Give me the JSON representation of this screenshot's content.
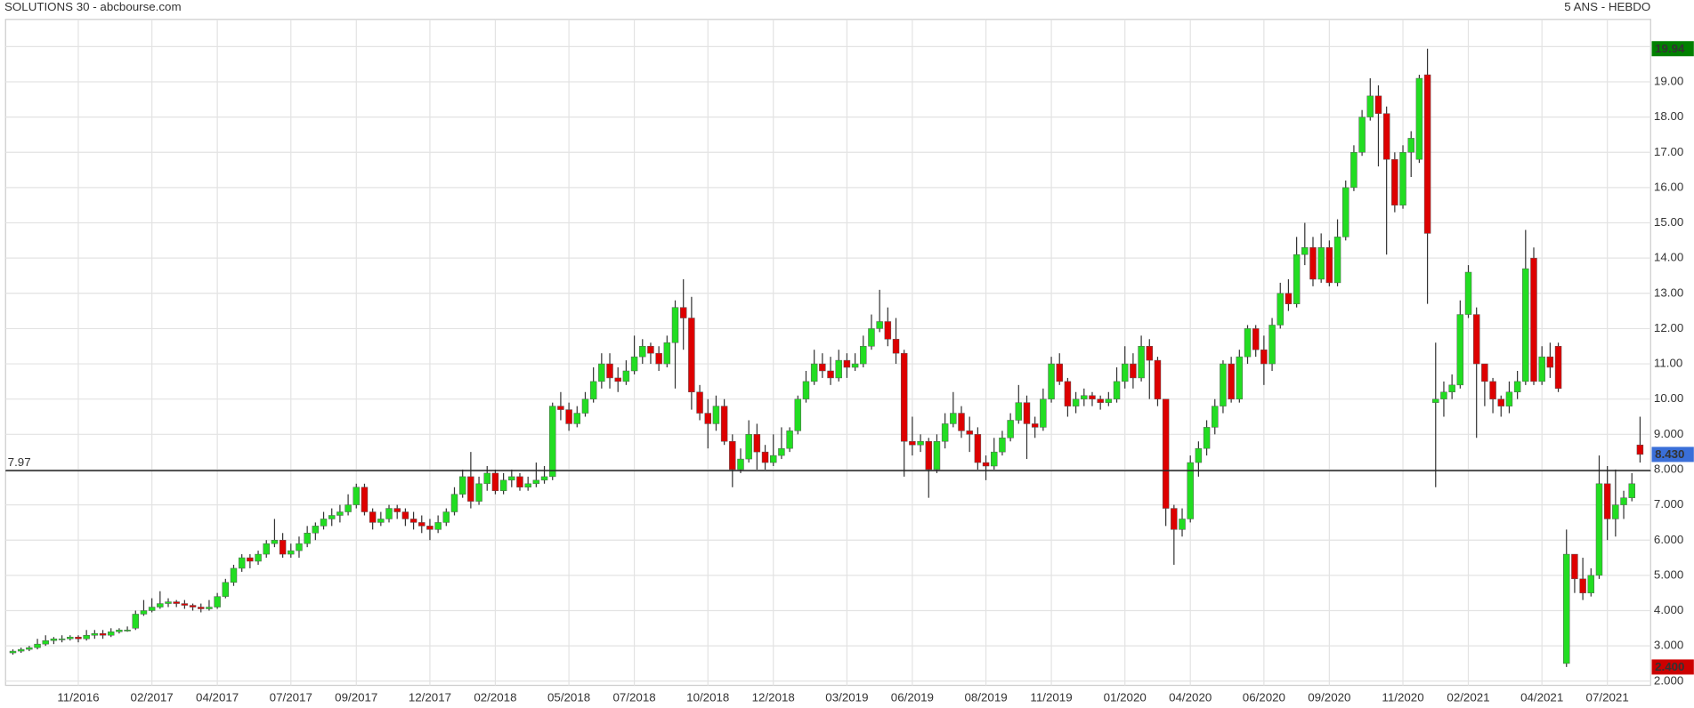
{
  "chart_data": {
    "type": "candlestick",
    "title": "SOLUTIONS 30 - abcbourse.com",
    "subtitle": "5 ANS - HEBDO",
    "up_color": "#22dd22",
    "down_color": "#dd0000",
    "grid": true,
    "ylim": [
      1.88,
      20.77
    ],
    "yticks": [
      {
        "value": 2,
        "label": "2.000"
      },
      {
        "value": 3,
        "label": "3.000"
      },
      {
        "value": 4,
        "label": "4.000"
      },
      {
        "value": 5,
        "label": "5.000"
      },
      {
        "value": 6,
        "label": "6.000"
      },
      {
        "value": 7,
        "label": "7.000"
      },
      {
        "value": 8,
        "label": "8.000"
      },
      {
        "value": 9,
        "label": "9.000"
      },
      {
        "value": 10,
        "label": "10.00"
      },
      {
        "value": 11,
        "label": "11.00"
      },
      {
        "value": 12,
        "label": "12.00"
      },
      {
        "value": 13,
        "label": "13.00"
      },
      {
        "value": 14,
        "label": "14.00"
      },
      {
        "value": 15,
        "label": "15.00"
      },
      {
        "value": 16,
        "label": "16.00"
      },
      {
        "value": 17,
        "label": "17.00"
      },
      {
        "value": 18,
        "label": "18.00"
      },
      {
        "value": 19,
        "label": "19.00"
      },
      {
        "value": 20,
        "label": "20.00"
      }
    ],
    "hline": 7.97,
    "price_labels": [
      {
        "value": 19.94,
        "color": "#008000"
      },
      {
        "value": 8.43,
        "label": "8.430",
        "color": "#3a6fd8"
      },
      {
        "value": 2.4,
        "label": "2.400",
        "color": "#cc0000"
      }
    ],
    "categories": [
      null,
      null,
      null,
      null,
      null,
      null,
      null,
      null,
      "11/2016",
      null,
      null,
      null,
      null,
      null,
      null,
      null,
      null,
      "02/2017",
      null,
      null,
      null,
      null,
      null,
      null,
      null,
      "04/2017",
      null,
      null,
      null,
      null,
      null,
      null,
      null,
      null,
      "07/2017",
      null,
      null,
      null,
      null,
      null,
      null,
      null,
      "09/2017",
      null,
      null,
      null,
      null,
      null,
      null,
      null,
      null,
      "12/2017",
      null,
      null,
      null,
      null,
      null,
      null,
      null,
      "02/2018",
      null,
      null,
      null,
      null,
      null,
      null,
      null,
      null,
      "05/2018",
      null,
      null,
      null,
      null,
      null,
      null,
      null,
      "07/2018",
      null,
      null,
      null,
      null,
      null,
      null,
      null,
      null,
      "10/2018",
      null,
      null,
      null,
      null,
      null,
      null,
      null,
      "12/2018",
      null,
      null,
      null,
      null,
      null,
      null,
      null,
      null,
      "03/2019",
      null,
      null,
      null,
      null,
      null,
      null,
      null,
      "06/2019",
      null,
      null,
      null,
      null,
      null,
      null,
      null,
      null,
      "08/2019",
      null,
      null,
      null,
      null,
      null,
      null,
      null,
      "11/2019",
      null,
      null,
      null,
      null,
      null,
      null,
      null,
      null,
      "01/2020",
      null,
      null,
      null,
      null,
      null,
      null,
      null,
      "04/2020",
      null,
      null,
      null,
      null,
      null,
      null,
      null,
      null,
      "06/2020",
      null,
      null,
      null,
      null,
      null,
      null,
      null,
      "09/2020",
      null,
      null,
      null,
      null,
      null,
      null,
      null,
      null,
      "11/2020",
      null,
      null,
      null,
      null,
      null,
      null,
      null,
      "02/2021",
      null,
      null,
      null,
      null,
      null,
      null,
      null,
      null,
      "04/2021",
      null,
      null,
      null,
      null,
      null,
      null,
      null,
      "07/2021",
      null,
      null,
      null,
      null
    ],
    "ohlc": [
      [
        2.8,
        2.9,
        2.75,
        2.85
      ],
      [
        2.85,
        2.95,
        2.8,
        2.9
      ],
      [
        2.9,
        3.0,
        2.85,
        2.95
      ],
      [
        2.95,
        3.2,
        2.9,
        3.05
      ],
      [
        3.05,
        3.3,
        3.0,
        3.15
      ],
      [
        3.15,
        3.25,
        3.05,
        3.2
      ],
      [
        3.2,
        3.3,
        3.1,
        3.2
      ],
      [
        3.2,
        3.3,
        3.15,
        3.25
      ],
      [
        3.25,
        3.3,
        3.1,
        3.2
      ],
      [
        3.2,
        3.45,
        3.15,
        3.3
      ],
      [
        3.3,
        3.45,
        3.2,
        3.35
      ],
      [
        3.35,
        3.45,
        3.2,
        3.3
      ],
      [
        3.3,
        3.5,
        3.25,
        3.4
      ],
      [
        3.4,
        3.5,
        3.35,
        3.45
      ],
      [
        3.45,
        3.55,
        3.4,
        3.45
      ],
      [
        3.5,
        4.0,
        3.45,
        3.9
      ],
      [
        3.9,
        4.3,
        3.85,
        4.0
      ],
      [
        4.0,
        4.35,
        3.95,
        4.1
      ],
      [
        4.1,
        4.55,
        4.05,
        4.2
      ],
      [
        4.2,
        4.35,
        4.1,
        4.25
      ],
      [
        4.25,
        4.3,
        4.1,
        4.2
      ],
      [
        4.2,
        4.3,
        4.05,
        4.15
      ],
      [
        4.15,
        4.2,
        4.0,
        4.1
      ],
      [
        4.1,
        4.2,
        3.95,
        4.05
      ],
      [
        4.05,
        4.3,
        4.0,
        4.1
      ],
      [
        4.1,
        4.5,
        4.05,
        4.4
      ],
      [
        4.4,
        4.9,
        4.35,
        4.8
      ],
      [
        4.8,
        5.3,
        4.7,
        5.2
      ],
      [
        5.2,
        5.6,
        5.1,
        5.5
      ],
      [
        5.5,
        5.6,
        5.2,
        5.4
      ],
      [
        5.4,
        5.7,
        5.3,
        5.6
      ],
      [
        5.6,
        6.0,
        5.5,
        5.9
      ],
      [
        5.9,
        6.6,
        5.8,
        6.0
      ],
      [
        6.0,
        6.2,
        5.5,
        5.6
      ],
      [
        5.6,
        5.9,
        5.5,
        5.7
      ],
      [
        5.7,
        6.1,
        5.5,
        5.9
      ],
      [
        5.9,
        6.4,
        5.8,
        6.2
      ],
      [
        6.2,
        6.5,
        6.0,
        6.4
      ],
      [
        6.4,
        6.8,
        6.3,
        6.6
      ],
      [
        6.6,
        6.9,
        6.4,
        6.7
      ],
      [
        6.7,
        7.0,
        6.5,
        6.8
      ],
      [
        6.8,
        7.3,
        6.7,
        7.0
      ],
      [
        7.0,
        7.6,
        6.9,
        7.5
      ],
      [
        7.5,
        7.6,
        6.7,
        6.8
      ],
      [
        6.8,
        6.9,
        6.3,
        6.5
      ],
      [
        6.5,
        6.8,
        6.4,
        6.6
      ],
      [
        6.6,
        7.0,
        6.5,
        6.9
      ],
      [
        6.9,
        7.0,
        6.6,
        6.8
      ],
      [
        6.8,
        6.9,
        6.4,
        6.6
      ],
      [
        6.6,
        6.8,
        6.3,
        6.5
      ],
      [
        6.5,
        6.7,
        6.2,
        6.4
      ],
      [
        6.4,
        6.6,
        6.0,
        6.3
      ],
      [
        6.3,
        6.7,
        6.2,
        6.5
      ],
      [
        6.5,
        6.9,
        6.4,
        6.8
      ],
      [
        6.8,
        7.5,
        6.7,
        7.3
      ],
      [
        7.3,
        8.0,
        7.2,
        7.8
      ],
      [
        7.8,
        8.5,
        6.9,
        7.1
      ],
      [
        7.1,
        7.8,
        7.0,
        7.6
      ],
      [
        7.6,
        8.1,
        7.4,
        7.9
      ],
      [
        7.9,
        8.0,
        7.3,
        7.4
      ],
      [
        7.4,
        7.9,
        7.3,
        7.7
      ],
      [
        7.7,
        8.0,
        7.5,
        7.8
      ],
      [
        7.8,
        7.9,
        7.4,
        7.5
      ],
      [
        7.5,
        7.8,
        7.4,
        7.6
      ],
      [
        7.6,
        8.2,
        7.5,
        7.7
      ],
      [
        7.7,
        8.1,
        7.6,
        7.8
      ],
      [
        7.8,
        9.9,
        7.7,
        9.8
      ],
      [
        9.8,
        10.2,
        9.4,
        9.7
      ],
      [
        9.7,
        9.9,
        9.1,
        9.3
      ],
      [
        9.3,
        9.8,
        9.2,
        9.6
      ],
      [
        9.6,
        10.2,
        9.5,
        10.0
      ],
      [
        10.0,
        10.9,
        9.9,
        10.5
      ],
      [
        10.5,
        11.3,
        10.3,
        11.0
      ],
      [
        11.0,
        11.3,
        10.3,
        10.6
      ],
      [
        10.6,
        10.9,
        10.2,
        10.5
      ],
      [
        10.5,
        11.1,
        10.4,
        10.8
      ],
      [
        10.8,
        11.8,
        10.7,
        11.2
      ],
      [
        11.2,
        11.7,
        11.0,
        11.5
      ],
      [
        11.5,
        11.6,
        11.0,
        11.3
      ],
      [
        11.3,
        11.5,
        10.8,
        11.0
      ],
      [
        11.0,
        11.8,
        10.9,
        11.6
      ],
      [
        11.6,
        12.8,
        10.3,
        12.6
      ],
      [
        12.6,
        13.4,
        11.4,
        12.3
      ],
      [
        12.3,
        12.9,
        9.7,
        10.2
      ],
      [
        10.2,
        10.4,
        9.4,
        9.6
      ],
      [
        9.6,
        10.0,
        8.6,
        9.3
      ],
      [
        9.3,
        10.1,
        9.1,
        9.8
      ],
      [
        9.8,
        10.0,
        8.7,
        8.8
      ],
      [
        8.8,
        9.0,
        7.5,
        8.0
      ],
      [
        8.0,
        8.6,
        7.9,
        8.3
      ],
      [
        8.3,
        9.4,
        8.2,
        9.0
      ],
      [
        9.0,
        9.3,
        8.0,
        8.5
      ],
      [
        8.5,
        8.7,
        8.0,
        8.2
      ],
      [
        8.2,
        9.0,
        8.1,
        8.4
      ],
      [
        8.4,
        9.2,
        8.3,
        8.6
      ],
      [
        8.6,
        9.2,
        8.5,
        9.1
      ],
      [
        9.1,
        10.1,
        9.0,
        10.0
      ],
      [
        10.0,
        10.8,
        9.9,
        10.5
      ],
      [
        10.5,
        11.4,
        10.4,
        11.0
      ],
      [
        11.0,
        11.3,
        10.6,
        10.8
      ],
      [
        10.8,
        11.2,
        10.4,
        10.6
      ],
      [
        10.6,
        11.4,
        10.5,
        11.1
      ],
      [
        11.1,
        11.3,
        10.6,
        10.9
      ],
      [
        10.9,
        11.3,
        10.8,
        11.0
      ],
      [
        11.0,
        11.8,
        10.9,
        11.5
      ],
      [
        11.5,
        12.4,
        11.4,
        12.0
      ],
      [
        12.0,
        13.1,
        11.9,
        12.2
      ],
      [
        12.2,
        12.6,
        11.5,
        11.7
      ],
      [
        11.7,
        12.3,
        11.0,
        11.3
      ],
      [
        11.3,
        11.4,
        7.8,
        8.8
      ],
      [
        8.8,
        9.5,
        8.4,
        8.7
      ],
      [
        8.7,
        9.0,
        8.5,
        8.8
      ],
      [
        8.8,
        8.9,
        7.2,
        8.0
      ],
      [
        8.0,
        9.0,
        7.9,
        8.8
      ],
      [
        8.8,
        9.6,
        8.6,
        9.3
      ],
      [
        9.3,
        10.2,
        9.2,
        9.6
      ],
      [
        9.6,
        9.8,
        8.9,
        9.1
      ],
      [
        9.1,
        9.5,
        8.5,
        9.0
      ],
      [
        9.0,
        9.2,
        8.0,
        8.2
      ],
      [
        8.2,
        8.4,
        7.7,
        8.1
      ],
      [
        8.1,
        8.9,
        8.0,
        8.5
      ],
      [
        8.5,
        9.1,
        8.4,
        8.9
      ],
      [
        8.9,
        9.6,
        8.8,
        9.4
      ],
      [
        9.4,
        10.4,
        9.3,
        9.9
      ],
      [
        9.9,
        10.1,
        8.3,
        9.3
      ],
      [
        9.3,
        9.5,
        8.9,
        9.2
      ],
      [
        9.2,
        10.3,
        9.1,
        10.0
      ],
      [
        10.0,
        11.2,
        9.9,
        11.0
      ],
      [
        11.0,
        11.3,
        10.4,
        10.5
      ],
      [
        10.5,
        10.6,
        9.5,
        9.8
      ],
      [
        9.8,
        10.2,
        9.6,
        10.0
      ],
      [
        10.0,
        10.3,
        9.8,
        10.1
      ],
      [
        10.1,
        10.2,
        9.8,
        10.0
      ],
      [
        10.0,
        10.1,
        9.7,
        9.9
      ],
      [
        9.9,
        10.2,
        9.8,
        10.0
      ],
      [
        10.0,
        10.9,
        9.9,
        10.5
      ],
      [
        10.5,
        11.5,
        10.3,
        11.0
      ],
      [
        11.0,
        11.3,
        10.3,
        10.6
      ],
      [
        10.6,
        11.8,
        10.5,
        11.5
      ],
      [
        11.5,
        11.7,
        10.0,
        11.1
      ],
      [
        11.1,
        11.2,
        9.8,
        10.0
      ],
      [
        10.0,
        10.0,
        6.4,
        6.9
      ],
      [
        6.9,
        7.0,
        5.3,
        6.3
      ],
      [
        6.3,
        6.9,
        6.1,
        6.6
      ],
      [
        6.6,
        8.4,
        6.5,
        8.2
      ],
      [
        8.2,
        8.8,
        7.8,
        8.6
      ],
      [
        8.6,
        9.4,
        8.4,
        9.2
      ],
      [
        9.2,
        10.0,
        9.0,
        9.8
      ],
      [
        9.8,
        11.1,
        9.6,
        11.0
      ],
      [
        11.0,
        11.2,
        9.9,
        10.0
      ],
      [
        10.0,
        11.4,
        9.9,
        11.2
      ],
      [
        11.2,
        12.1,
        11.0,
        12.0
      ],
      [
        12.0,
        12.1,
        11.2,
        11.4
      ],
      [
        11.4,
        11.8,
        10.4,
        11.0
      ],
      [
        11.0,
        12.3,
        10.8,
        12.1
      ],
      [
        12.1,
        13.3,
        12.0,
        13.0
      ],
      [
        13.0,
        13.4,
        12.5,
        12.7
      ],
      [
        12.7,
        14.6,
        12.6,
        14.1
      ],
      [
        14.1,
        15.0,
        13.8,
        14.3
      ],
      [
        14.3,
        14.6,
        13.2,
        13.4
      ],
      [
        13.4,
        14.7,
        13.3,
        14.3
      ],
      [
        14.3,
        14.5,
        13.2,
        13.3
      ],
      [
        13.3,
        15.1,
        13.2,
        14.6
      ],
      [
        14.6,
        16.2,
        14.5,
        16.0
      ],
      [
        16.0,
        17.2,
        15.9,
        17.0
      ],
      [
        17.0,
        18.2,
        16.9,
        18.0
      ],
      [
        18.0,
        19.1,
        17.9,
        18.6
      ],
      [
        18.6,
        18.9,
        16.6,
        18.1
      ],
      [
        18.1,
        18.3,
        14.1,
        16.8
      ],
      [
        16.8,
        17.0,
        15.3,
        15.5
      ],
      [
        15.5,
        17.2,
        15.4,
        17.0
      ],
      [
        17.0,
        17.6,
        16.3,
        17.4
      ],
      [
        16.8,
        19.2,
        16.7,
        19.1
      ],
      [
        19.2,
        19.94,
        12.7,
        14.7
      ],
      [
        9.9,
        11.6,
        7.5,
        10.0
      ],
      [
        10.0,
        10.5,
        9.5,
        10.2
      ],
      [
        10.2,
        10.7,
        10.0,
        10.4
      ],
      [
        10.4,
        12.8,
        10.3,
        12.4
      ],
      [
        12.4,
        13.8,
        12.3,
        13.6
      ],
      [
        12.4,
        12.6,
        8.9,
        11.0
      ],
      [
        11.0,
        11.0,
        9.8,
        10.5
      ],
      [
        10.5,
        10.6,
        9.6,
        10.0
      ],
      [
        10.0,
        10.1,
        9.5,
        9.8
      ],
      [
        9.8,
        10.5,
        9.6,
        10.2
      ],
      [
        10.2,
        10.8,
        10.0,
        10.5
      ],
      [
        10.5,
        14.8,
        10.4,
        13.7
      ],
      [
        14.0,
        14.3,
        10.4,
        10.5
      ],
      [
        10.5,
        11.5,
        10.4,
        11.2
      ],
      [
        11.2,
        11.6,
        10.6,
        10.9
      ],
      [
        11.5,
        11.6,
        10.2,
        10.3
      ],
      [
        2.5,
        6.3,
        2.4,
        5.6
      ],
      [
        5.6,
        5.6,
        4.5,
        4.9
      ],
      [
        4.9,
        5.5,
        4.3,
        4.5
      ],
      [
        4.5,
        5.2,
        4.4,
        5.0
      ],
      [
        5.0,
        8.4,
        4.9,
        7.6
      ],
      [
        7.6,
        8.1,
        6.0,
        6.6
      ],
      [
        6.6,
        8.0,
        6.1,
        7.0
      ],
      [
        7.0,
        7.4,
        6.6,
        7.2
      ],
      [
        7.2,
        7.9,
        7.1,
        7.6
      ],
      [
        8.7,
        9.5,
        8.2,
        8.43
      ]
    ]
  }
}
